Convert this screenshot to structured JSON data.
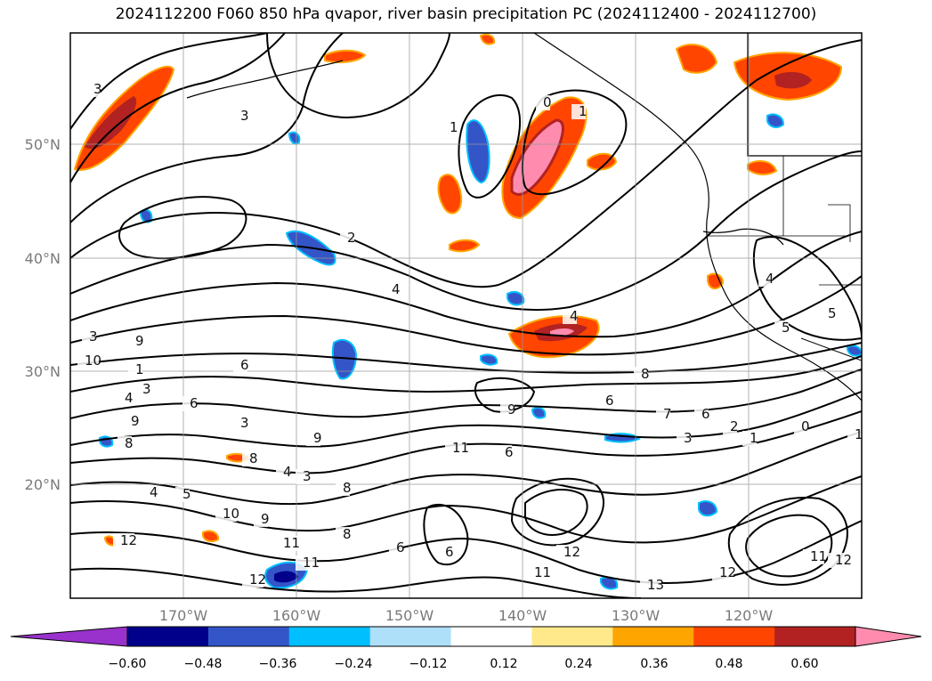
{
  "title": "2024112200 F060 850 hPa qvapor, river basin precipitation PC (2024112400 - 2024112700)",
  "map": {
    "lat_ticks": [
      "50°N",
      "40°N",
      "30°N",
      "20°N"
    ],
    "lon_ticks": [
      "170°W",
      "160°W",
      "150°W",
      "140°W",
      "130°W",
      "120°W"
    ],
    "contour_labels": [
      "3",
      "3",
      "3",
      "1",
      "0",
      "1",
      "2",
      "4",
      "4",
      "3",
      "9",
      "1",
      "10",
      "4",
      "3",
      "9",
      "8",
      "6",
      "6",
      "9",
      "6",
      "8",
      "4",
      "3",
      "5",
      "4",
      "10",
      "9",
      "11",
      "8",
      "12",
      "11",
      "12",
      "6",
      "8",
      "11",
      "6",
      "8",
      "9",
      "6",
      "7",
      "6",
      "3",
      "2",
      "1",
      "0",
      "5",
      "4",
      "5",
      "13",
      "12",
      "11",
      "12",
      "11",
      "12",
      "1"
    ]
  },
  "colorbar": {
    "labels": [
      "−0.60",
      "−0.48",
      "−0.36",
      "−0.24",
      "−0.12",
      "0.12",
      "0.24",
      "0.36",
      "0.48",
      "0.60"
    ],
    "colors": [
      "#9932cc",
      "#00008b",
      "#3455c8",
      "#00bfff",
      "#aee0fa",
      "#ffffff",
      "#ffe98a",
      "#ffa500",
      "#ff4500",
      "#b22222",
      "#ff8caf"
    ]
  }
}
